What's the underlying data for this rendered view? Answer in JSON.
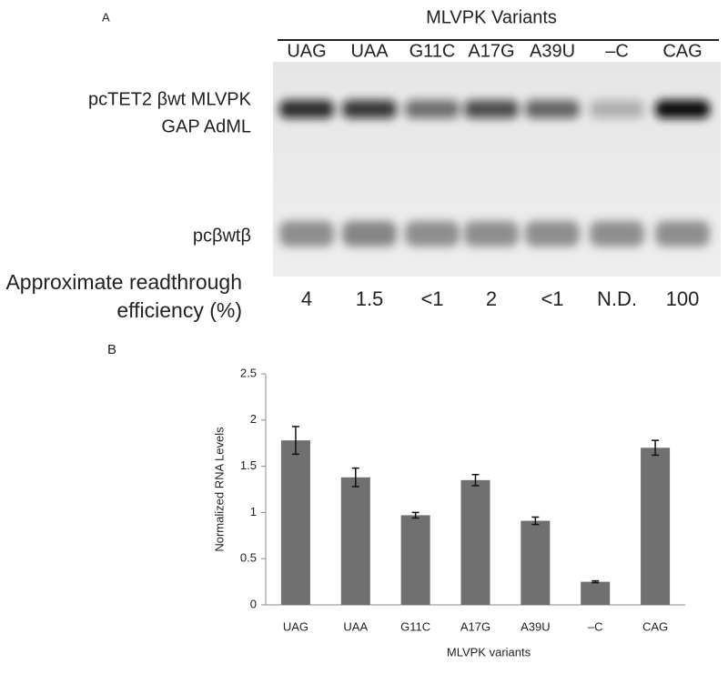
{
  "panel_a": {
    "label": "A",
    "header": "MLVPK Variants",
    "lanes": [
      "UAG",
      "UAA",
      "G11C",
      "A17G",
      "A39U",
      "–C",
      "CAG"
    ],
    "band_labels": [
      "pcTET2 βwt MLVPK",
      "GAP AdML",
      "pcβwtβ"
    ],
    "readthrough_label": [
      "Approximate readthrough",
      "efficiency (%)"
    ],
    "readthrough_values": [
      "4",
      "1.5",
      "<1",
      "2",
      "<1",
      "N.D.",
      "100"
    ]
  },
  "chart_data": {
    "type": "bar",
    "panel_label": "B",
    "categories": [
      "UAG",
      "UAA",
      "G11C",
      "A17G",
      "A39U",
      "–C",
      "CAG"
    ],
    "values": [
      1.78,
      1.38,
      0.97,
      1.35,
      0.91,
      0.25,
      1.7
    ],
    "errors": [
      0.15,
      0.1,
      0.03,
      0.06,
      0.04,
      0.01,
      0.08
    ],
    "color": "#707070",
    "ylim": [
      0,
      2.5
    ],
    "yticks": [
      0,
      0.5,
      1,
      1.5,
      2,
      2.5
    ],
    "ylabel": "Normalized RNA Levels",
    "xlabel": "MLVPK variants"
  }
}
